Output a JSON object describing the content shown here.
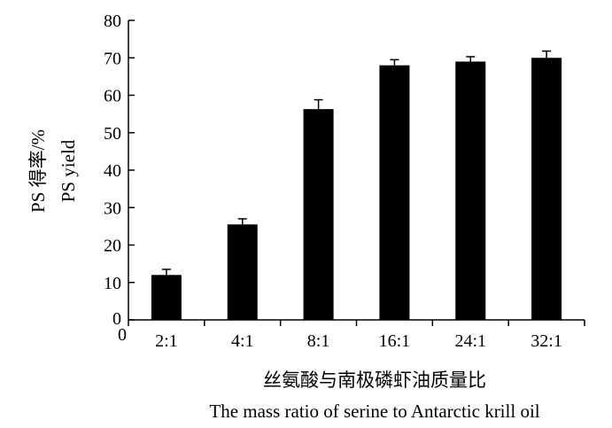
{
  "chart_data": {
    "type": "bar",
    "categories": [
      "2:1",
      "4:1",
      "8:1",
      "16:1",
      "24:1",
      "32:1"
    ],
    "values": [
      12,
      25.5,
      56.3,
      68,
      69,
      70
    ],
    "errors": [
      1.5,
      1.5,
      2.5,
      1.5,
      1.3,
      1.8
    ],
    "ylim": [
      0,
      80
    ],
    "yticks": [
      0,
      10,
      20,
      30,
      40,
      50,
      60,
      70,
      80
    ],
    "ylabel_cn": "PS 得率/%",
    "ylabel_en": "PS yield",
    "xlabel_cn": "丝氨酸与南极磷虾油质量比",
    "xlabel_en": "The mass ratio of serine to Antarctic krill oil",
    "x_origin_label": "0",
    "bar_color": "#000000",
    "grid": false,
    "legend": "none"
  }
}
